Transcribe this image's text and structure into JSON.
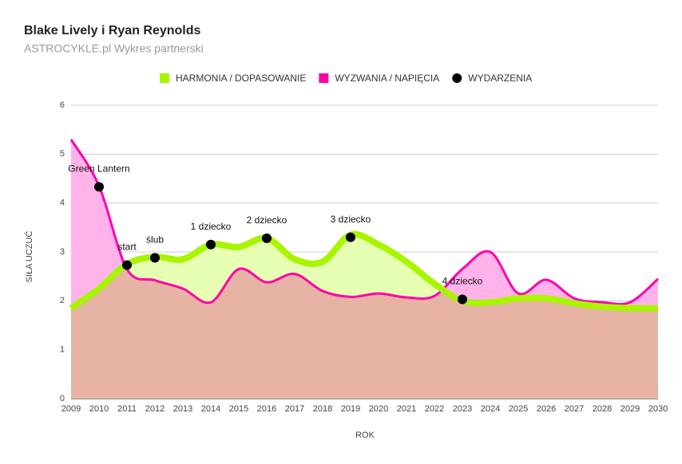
{
  "chart_data": {
    "type": "line",
    "title": "Blake Lively i Ryan Reynolds",
    "subtitle": "ASTROCYKLE.pl Wykres partnerski",
    "x_label": "ROK",
    "y_label": "SIŁA UCZUĆ",
    "x": [
      2009,
      2010,
      2011,
      2012,
      2013,
      2014,
      2015,
      2016,
      2017,
      2018,
      2019,
      2020,
      2021,
      2022,
      2023,
      2024,
      2025,
      2026,
      2027,
      2028,
      2029,
      2030
    ],
    "xlim": [
      2009,
      2030
    ],
    "xticks": [
      2009,
      2010,
      2011,
      2012,
      2013,
      2014,
      2015,
      2016,
      2017,
      2018,
      2019,
      2020,
      2021,
      2022,
      2023,
      2024,
      2025,
      2026,
      2027,
      2028,
      2029,
      2030
    ],
    "ylim": [
      0,
      6
    ],
    "yticks": [
      0,
      1,
      2,
      3,
      4,
      5,
      6
    ],
    "grid": true,
    "legend": "top",
    "series": [
      {
        "name": "HARMONIA / DOPASOWANIE",
        "color": "#a8f500",
        "fill": "#e6ffb3",
        "values": [
          1.85,
          2.25,
          2.75,
          2.9,
          2.85,
          3.15,
          3.1,
          3.28,
          2.85,
          2.8,
          3.35,
          3.15,
          2.8,
          2.35,
          2.0,
          1.97,
          2.05,
          2.05,
          1.95,
          1.88,
          1.85,
          1.85
        ]
      },
      {
        "name": "WYZWANIA / NAPIĘCIA",
        "color": "#ff00aa",
        "fill": "#ffb3ea",
        "values": [
          5.3,
          4.35,
          2.65,
          2.42,
          2.25,
          1.97,
          2.65,
          2.38,
          2.55,
          2.2,
          2.08,
          2.15,
          2.07,
          2.1,
          2.65,
          3.0,
          2.15,
          2.43,
          2.05,
          1.97,
          1.97,
          2.45
        ]
      }
    ],
    "events": {
      "name": "WYDARZENIA",
      "color": "#000000",
      "x": [
        2010,
        2011,
        2012,
        2014,
        2016,
        2019,
        2023
      ],
      "values": [
        4.33,
        2.73,
        2.88,
        3.15,
        3.28,
        3.3,
        2.03
      ],
      "labels": [
        "Green Lantern",
        "start",
        "ślub",
        "1 dziecko",
        "2 dziecko",
        "3 dziecko",
        "4 dziecko"
      ]
    }
  }
}
